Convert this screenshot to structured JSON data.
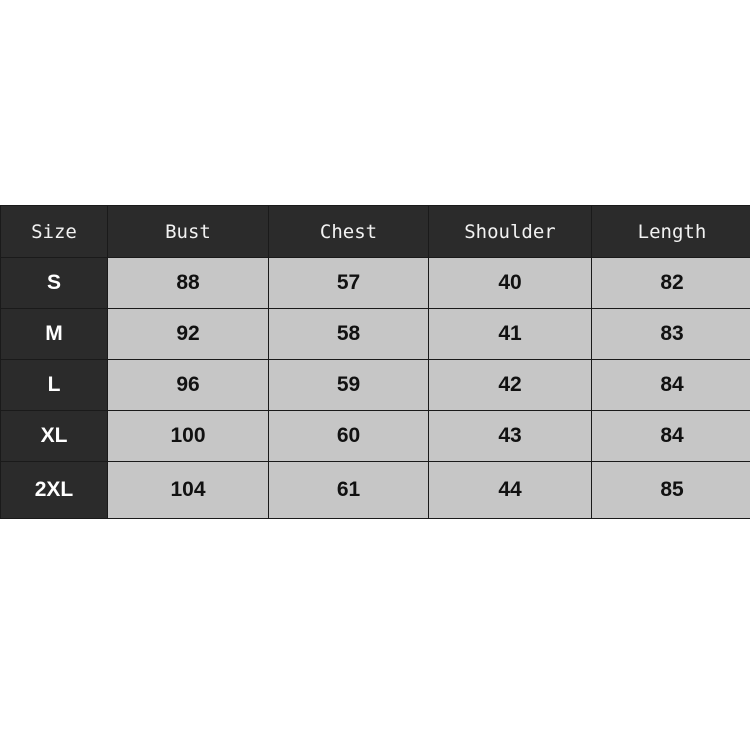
{
  "table": {
    "headers": [
      "Size",
      "Bust",
      "Chest",
      "Shoulder",
      "Length"
    ],
    "rows": [
      [
        "S",
        "88",
        "57",
        "40",
        "82"
      ],
      [
        "M",
        "92",
        "58",
        "41",
        "83"
      ],
      [
        "L",
        "96",
        "59",
        "42",
        "84"
      ],
      [
        "XL",
        "100",
        "60",
        "43",
        "84"
      ],
      [
        "2XL",
        "104",
        "61",
        "44",
        "85"
      ]
    ]
  }
}
